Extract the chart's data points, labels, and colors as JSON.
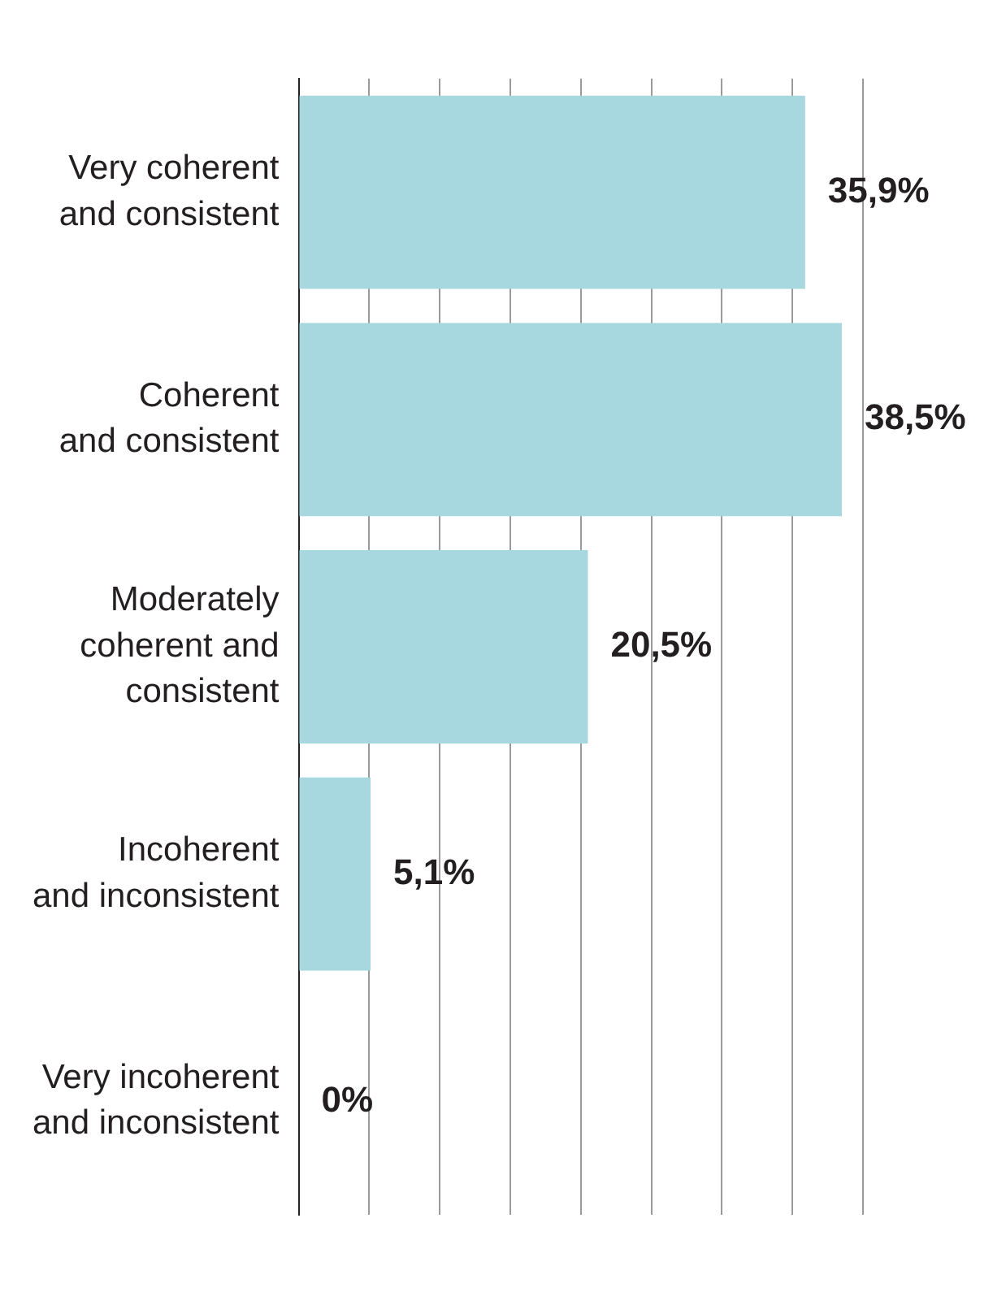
{
  "chart_data": {
    "type": "bar",
    "orientation": "horizontal",
    "categories": [
      "Very coherent\nand consistent",
      "Coherent\nand consistent",
      "Moderately\ncoherent and\nconsistent",
      "Incoherent\nand inconsistent",
      "Very incoherent\nand inconsistent"
    ],
    "values": [
      35.9,
      38.5,
      20.5,
      5.1,
      0
    ],
    "value_labels": [
      "35,9%",
      "38,5%",
      "20,5%",
      "5,1%",
      "0%"
    ],
    "color": "#a8d8df",
    "xlim": [
      0,
      40
    ],
    "xticks": [
      {
        "value": 0,
        "label": null
      },
      {
        "value": 5,
        "label": null
      },
      {
        "value": 10,
        "label": null
      },
      {
        "value": 15,
        "label": null
      },
      {
        "value": 20,
        "label": null
      },
      {
        "value": 25,
        "label": null
      },
      {
        "value": 30,
        "label": null
      },
      {
        "value": 35,
        "label": null
      },
      {
        "value": 40,
        "label": null
      }
    ],
    "grid": "x",
    "legend": false
  }
}
